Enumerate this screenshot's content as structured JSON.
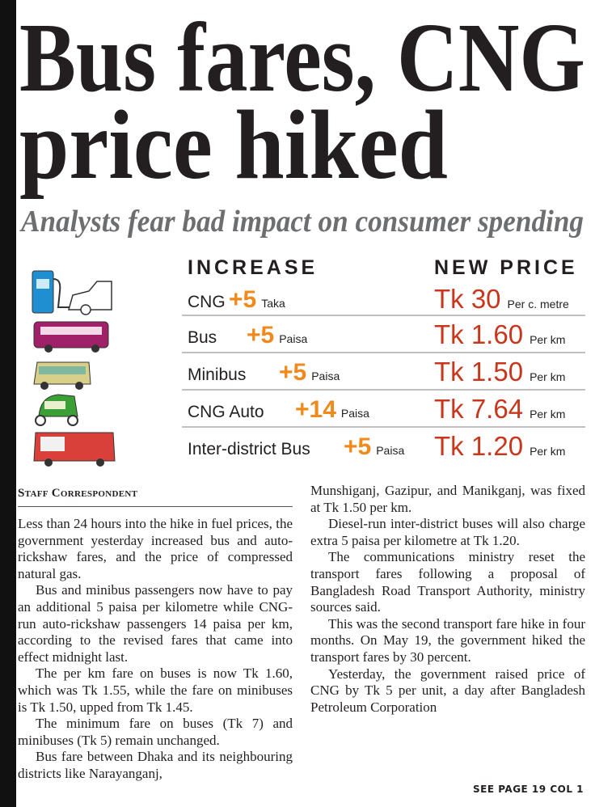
{
  "header": {
    "title_line1": "Bus fares, CNG",
    "title_line2": "price hiked",
    "subtitle": "Analysts fear bad impact on consumer spending"
  },
  "table": {
    "headers": [
      "INCREASE",
      "NEW PRICE"
    ],
    "rows": [
      {
        "name": "CNG",
        "increase": "+5",
        "increase_unit": "Taka",
        "price": "Tk 30",
        "price_unit": "Per c. metre"
      },
      {
        "name": "Bus",
        "increase": "+5",
        "increase_unit": "Paisa",
        "price": "Tk 1.60",
        "price_unit": "Per km"
      },
      {
        "name": "Minibus",
        "increase": "+5",
        "increase_unit": "Paisa",
        "price": "Tk 1.50",
        "price_unit": "Per km"
      },
      {
        "name": "CNG Auto",
        "increase": "+14",
        "increase_unit": "Paisa",
        "price": "Tk 7.64",
        "price_unit": "Per km"
      },
      {
        "name": "Inter-district Bus",
        "increase": "+5",
        "increase_unit": "Paisa",
        "price": "Tk 1.20",
        "price_unit": "Per km"
      }
    ]
  },
  "article": {
    "byline": "Staff Correspondent",
    "column1": [
      "Less than 24 hours into the hike in fuel prices, the government yesterday increased bus and auto-rickshaw fares, and the price of compressed natural gas.",
      "Bus and minibus passengers now have to pay an additional 5 paisa per kilometre while CNG-run auto-rickshaw passengers 14 paisa per km, according to the revised fares that came into effect midnight last.",
      "The per km fare on buses is now Tk 1.60, which was Tk 1.55, while the fare on minibuses is Tk 1.50, upped from Tk 1.45.",
      "The minimum fare on buses (Tk 7) and minibuses (Tk 5) remain unchanged.",
      "Bus fare between Dhaka and its neighbouring districts like Narayanganj,"
    ],
    "column2": [
      "Munshiganj, Gazipur, and Manikganj, was fixed at Tk 1.50 per km.",
      "Diesel-run inter-district buses will also charge extra 5 paisa per kilometre at Tk 1.20.",
      "The communications ministry reset the transport fares following a proposal of Bangladesh Road Transport Authority, ministry sources said.",
      "This was the second transport fare hike in four months. On May 19, the government hiked the transport fares by 30 percent.",
      "Yesterday, the government raised price of CNG by Tk 5 per unit, a day after Bangladesh Petroleum Corporation"
    ],
    "jump": "SEE PAGE 19 COL 1"
  }
}
